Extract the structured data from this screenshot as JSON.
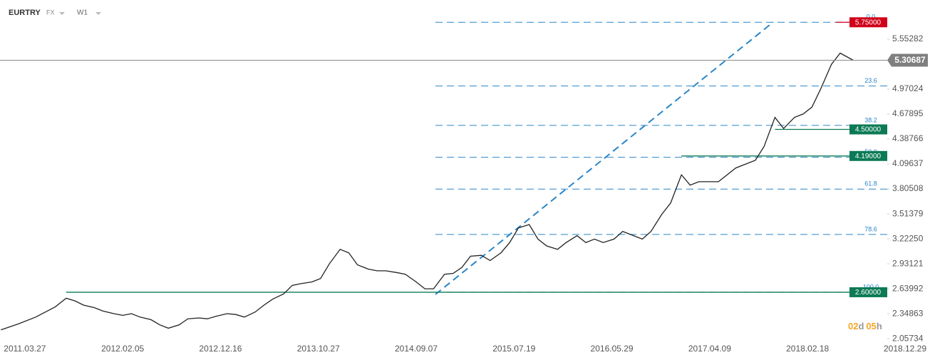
{
  "header": {
    "symbol": "EURTRY",
    "market": "FX",
    "interval": "W1"
  },
  "timer": {
    "days": "02",
    "day_unit": "d",
    "hours": "05",
    "hour_unit": "h"
  },
  "chart_data": {
    "type": "line",
    "x": [
      "2011.01.09",
      "2011.03.06",
      "2011.05.01",
      "2011.07.03",
      "2011.08.07",
      "2011.09.04",
      "2011.10.02",
      "2011.11.06",
      "2011.12.04",
      "2012.01.08",
      "2012.02.05",
      "2012.03.04",
      "2012.04.01",
      "2012.05.06",
      "2012.06.03",
      "2012.07.01",
      "2012.08.05",
      "2012.09.02",
      "2012.10.07",
      "2012.11.04",
      "2012.12.02",
      "2013.01.06",
      "2013.02.03",
      "2013.03.03",
      "2013.04.07",
      "2013.05.05",
      "2013.06.02",
      "2013.07.07",
      "2013.08.04",
      "2013.09.01",
      "2013.10.06",
      "2013.11.03",
      "2013.12.01",
      "2014.01.05",
      "2014.02.02",
      "2014.03.02",
      "2014.04.06",
      "2014.05.04",
      "2014.06.01",
      "2014.07.06",
      "2014.08.03",
      "2014.09.07",
      "2014.10.05",
      "2014.11.02",
      "2014.12.07",
      "2015.01.04",
      "2015.02.01",
      "2015.03.01",
      "2015.04.05",
      "2015.05.03",
      "2015.06.07",
      "2015.07.05",
      "2015.08.02",
      "2015.09.06",
      "2015.10.04",
      "2015.11.01",
      "2015.12.06",
      "2016.01.03",
      "2016.02.07",
      "2016.03.06",
      "2016.04.03",
      "2016.05.01",
      "2016.06.05",
      "2016.07.03",
      "2016.08.07",
      "2016.09.04",
      "2016.10.02",
      "2016.11.06",
      "2016.12.04",
      "2017.01.08",
      "2017.02.05",
      "2017.03.05",
      "2017.04.02",
      "2017.05.07",
      "2017.06.04",
      "2017.07.02",
      "2017.08.06",
      "2017.09.03",
      "2017.10.01",
      "2017.11.05",
      "2017.12.03",
      "2018.01.07",
      "2018.02.04",
      "2018.03.04",
      "2018.04.01",
      "2018.05.06",
      "2018.06.03",
      "2018.07.15"
    ],
    "series": [
      {
        "color": "#222222",
        "values": [
          2.16,
          2.23,
          2.31,
          2.43,
          2.53,
          2.5,
          2.45,
          2.42,
          2.38,
          2.35,
          2.33,
          2.35,
          2.31,
          2.28,
          2.22,
          2.18,
          2.22,
          2.29,
          2.3,
          2.29,
          2.32,
          2.35,
          2.34,
          2.31,
          2.37,
          2.45,
          2.52,
          2.58,
          2.68,
          2.7,
          2.72,
          2.76,
          2.93,
          3.1,
          3.06,
          2.92,
          2.87,
          2.85,
          2.85,
          2.83,
          2.81,
          2.72,
          2.64,
          2.64,
          2.81,
          2.82,
          2.89,
          3.02,
          3.03,
          2.97,
          3.06,
          3.18,
          3.35,
          3.39,
          3.22,
          3.14,
          3.1,
          3.18,
          3.26,
          3.18,
          3.22,
          3.18,
          3.22,
          3.31,
          3.26,
          3.22,
          3.31,
          3.51,
          3.64,
          3.97,
          3.85,
          3.89,
          3.89,
          3.89,
          3.97,
          4.05,
          4.1,
          4.14,
          4.3,
          4.64,
          4.51,
          4.64,
          4.68,
          4.76,
          4.97,
          5.26,
          5.39,
          5.30687
        ]
      }
    ],
    "xlim": [
      "2011.01.06",
      "2018.12.29"
    ],
    "xticks": [
      "2011.03.27",
      "2012.02.05",
      "2012.12.16",
      "2013.10.27",
      "2014.09.07",
      "2015.07.19",
      "2016.05.29",
      "2017.04.09",
      "2018.02.18",
      "2018.12.29"
    ],
    "ylim": [
      1.934,
      6.01
    ],
    "yticks": [
      5.55282,
      4.97024,
      4.67895,
      4.38766,
      4.09637,
      3.80508,
      3.51379,
      {
        "value": 3.2225,
        "label": "3.22250"
      },
      2.93121,
      2.63992,
      2.34863,
      2.05734
    ],
    "current_price": {
      "value": 5.30687,
      "label": "5.30687"
    },
    "price_lines": [
      {
        "value": 5.75,
        "label": "5.75000",
        "color": "#d0021b",
        "start": "2018.05.20"
      },
      {
        "value": 4.5,
        "label": "4.50000",
        "color": "#0b7a55",
        "start": "2017.11.05"
      },
      {
        "value": 4.19,
        "label": "4.19000",
        "color": "#0b7a55",
        "start": "2017.01.08"
      },
      {
        "value": 2.6,
        "label": "2.60000",
        "color": "#0b7a55",
        "start": "2011.08.07"
      }
    ],
    "fib": {
      "high": 5.75,
      "low": 2.6,
      "color": "#2a86c8",
      "levels": [
        {
          "value": 0,
          "label": "0.0"
        },
        23.6,
        38.2,
        {
          "value": 50,
          "label": "50.0"
        },
        61.8,
        78.6,
        {
          "value": 100,
          "label": "100.0"
        }
      ]
    }
  }
}
